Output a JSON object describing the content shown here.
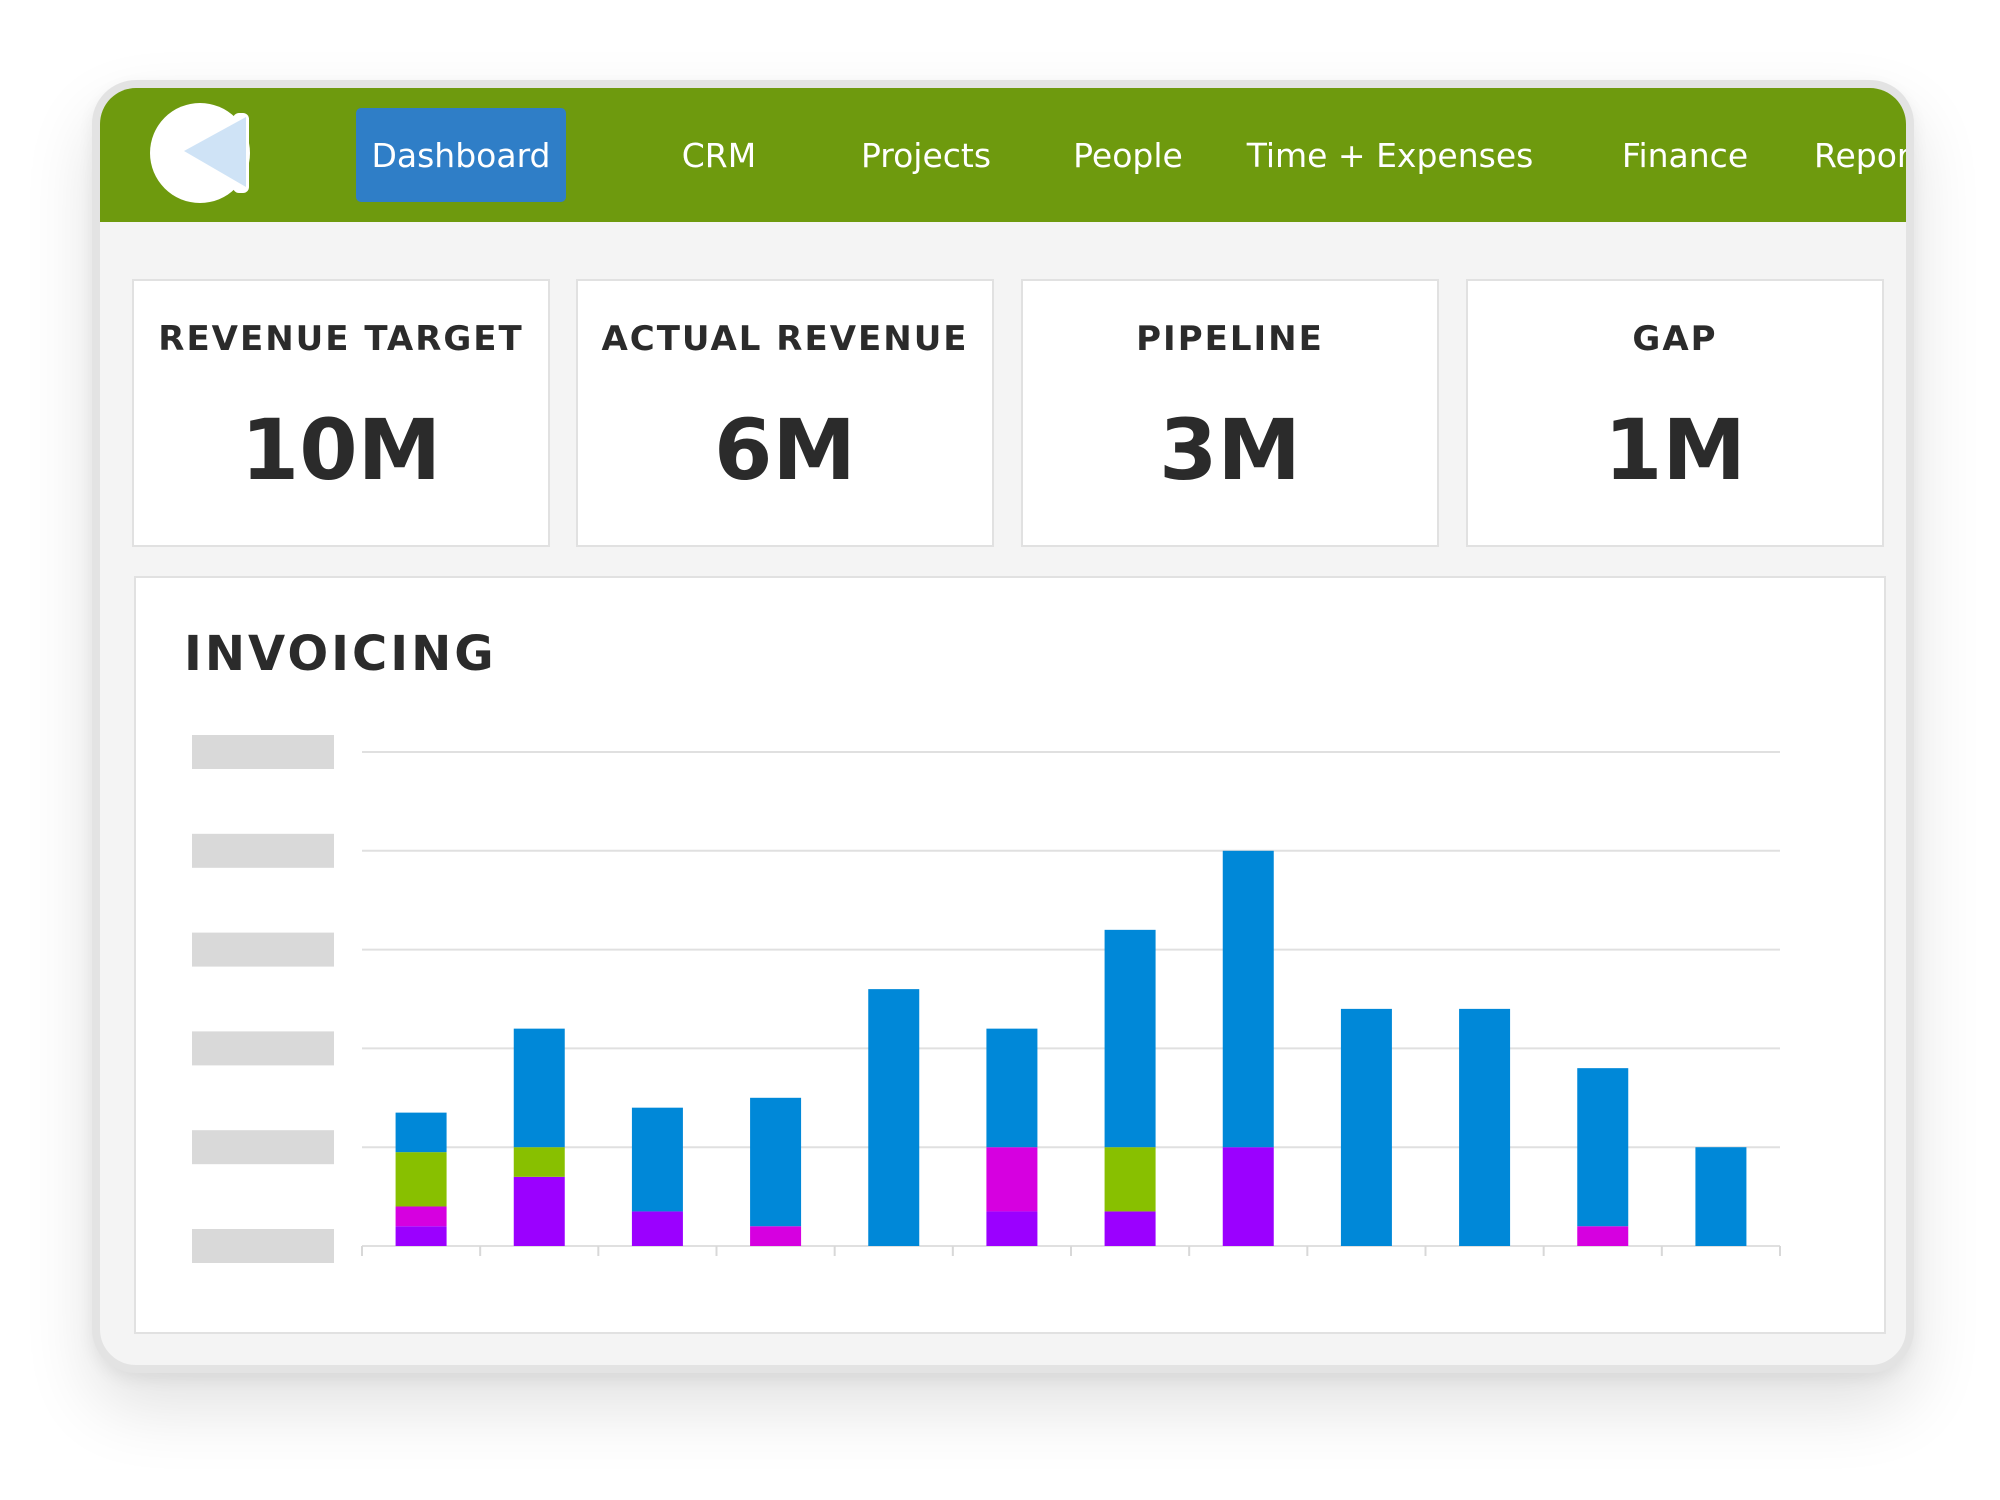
{
  "nav": {
    "items": [
      {
        "label": "Dashboard",
        "active": true
      },
      {
        "label": "CRM",
        "active": false
      },
      {
        "label": "Projects",
        "active": false
      },
      {
        "label": "People",
        "active": false
      },
      {
        "label": "Time + Expenses",
        "active": false
      },
      {
        "label": "Finance",
        "active": false
      },
      {
        "label": "Report",
        "active": false
      }
    ]
  },
  "kpis": [
    {
      "label": "REVENUE TARGET",
      "value": "10M"
    },
    {
      "label": "ACTUAL REVENUE",
      "value": "6M"
    },
    {
      "label": "PIPELINE",
      "value": "3M"
    },
    {
      "label": "GAP",
      "value": "1M"
    }
  ],
  "invoicing": {
    "title": "INVOICING"
  },
  "colors": {
    "nav_bg": "#6e9a0e",
    "active_tab": "#2f7ec7",
    "purple": "#9b00ff",
    "magenta": "#d600e0",
    "green": "#88c000",
    "blue": "#0088d8",
    "placeholder": "#d9d9d9"
  },
  "chart_data": {
    "type": "bar",
    "stacked": true,
    "title": "INVOICING",
    "xlabel": "",
    "ylabel": "",
    "ylim": [
      0,
      5
    ],
    "grid": true,
    "tick_labels_visible": false,
    "categories": [
      "",
      "",
      "",
      "",
      "",
      "",
      "",
      "",
      "",
      "",
      "",
      ""
    ],
    "series": [
      {
        "color": "#9b00ff",
        "values": [
          0.2,
          0.7,
          0.35,
          0,
          0,
          0.35,
          0.35,
          1.0,
          0,
          0,
          0,
          0
        ]
      },
      {
        "color": "#d600e0",
        "values": [
          0.2,
          0,
          0,
          0.2,
          0,
          0.65,
          0,
          0,
          0,
          0,
          0.2,
          0
        ]
      },
      {
        "color": "#88c000",
        "values": [
          0.55,
          0.3,
          0,
          0,
          0,
          0,
          0.65,
          0,
          0,
          0,
          0,
          0
        ]
      },
      {
        "color": "#0088d8",
        "values": [
          0.4,
          1.2,
          1.05,
          1.3,
          2.6,
          1.2,
          2.2,
          3.0,
          2.4,
          2.4,
          1.6,
          1.0
        ]
      }
    ]
  }
}
